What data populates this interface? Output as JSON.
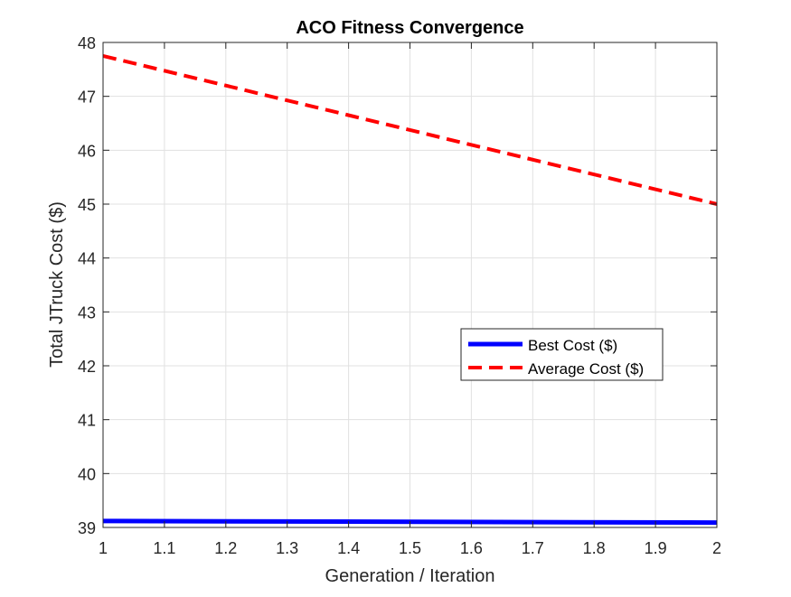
{
  "chart_data": {
    "type": "line",
    "title": "ACO Fitness Convergence",
    "xlabel": "Generation / Iteration",
    "ylabel": "Total JTruck Cost ($)",
    "xlim": [
      1,
      2
    ],
    "ylim": [
      39,
      48
    ],
    "xticks": [
      "1",
      "1.1",
      "1.2",
      "1.3",
      "1.4",
      "1.5",
      "1.6",
      "1.7",
      "1.8",
      "1.9",
      "2"
    ],
    "yticks": [
      "39",
      "40",
      "41",
      "42",
      "43",
      "44",
      "45",
      "46",
      "47",
      "48"
    ],
    "grid": true,
    "legend_position": "inside-right",
    "series": [
      {
        "name": "Best Cost ($)",
        "x": [
          1,
          2
        ],
        "y": [
          39.12,
          39.09
        ],
        "color": "#0000ff",
        "style": "solid"
      },
      {
        "name": "Average Cost ($)",
        "x": [
          1,
          2
        ],
        "y": [
          47.75,
          45.0
        ],
        "color": "#ff0000",
        "style": "dashed"
      }
    ]
  }
}
